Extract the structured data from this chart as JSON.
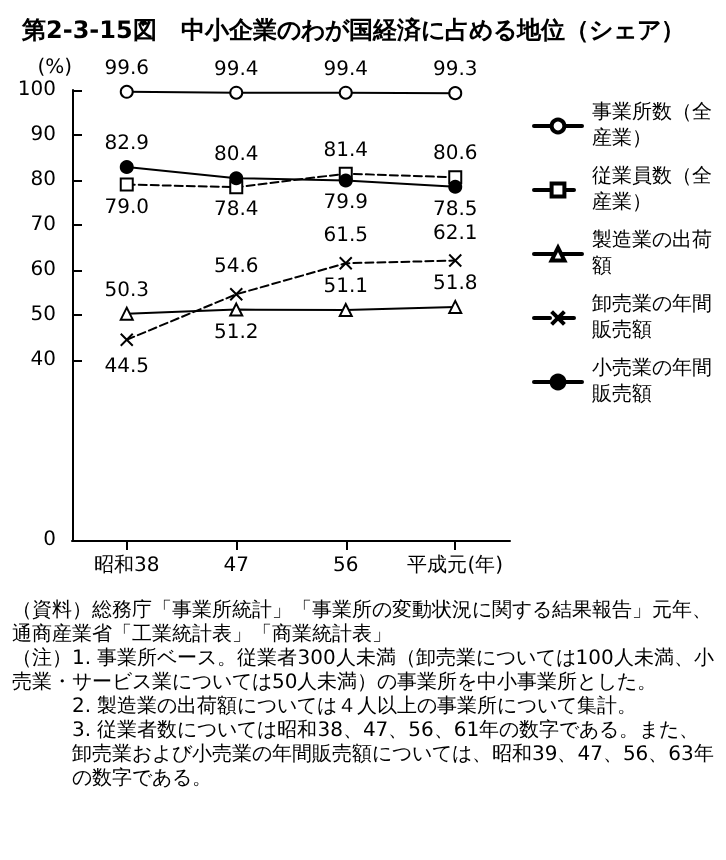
{
  "chart_data": {
    "type": "line",
    "title": "第2-3-15図　中小企業のわが国経済に占める地位（シェア）",
    "ylabel": "(%)",
    "categories": [
      "昭和38",
      "47",
      "56",
      "平成元(年)"
    ],
    "series": [
      {
        "name": "事業所数（全産業）",
        "color": "#000000",
        "values": [
          99.6,
          99.4,
          99.4,
          99.3
        ],
        "marker": "circle",
        "line_style": "solid"
      },
      {
        "name": "従業員数（全産業）",
        "color": "#000000",
        "values": [
          79.0,
          78.4,
          81.4,
          80.6
        ],
        "value_labels": [
          "79.0",
          "78.4",
          "81.4",
          "80.6"
        ],
        "marker": "square",
        "line_style": "dashed"
      },
      {
        "name": "製造業の出荷額",
        "color": "#000000",
        "values": [
          50.3,
          51.2,
          51.1,
          51.8
        ],
        "marker": "triangle",
        "line_style": "solid"
      },
      {
        "name": "卸売業の年間販売額",
        "color": "#000000",
        "values": [
          44.5,
          54.6,
          61.5,
          62.1
        ],
        "marker": "cross",
        "line_style": "dashed"
      },
      {
        "name": "小売業の年間販売額",
        "color": "#000000",
        "values": [
          82.9,
          80.4,
          79.9,
          78.5
        ],
        "marker": "filled_circle",
        "line_style": "solid"
      }
    ],
    "ylim": [
      0,
      100
    ],
    "yticks": [
      0,
      40,
      50,
      60,
      70,
      80,
      90,
      100
    ],
    "data_labels": true,
    "grid": false,
    "legend": "right",
    "annotations": [
      "（資料）総務庁「事業所統計」「事業所の変動状況に関する結果報告」元年、通商産業省「工業統計表」「商業統計表」",
      "（注）1. 事業所ベース。従業者300人未満（卸売業については100人未満、小売業・サービス業については50人未満）の事業所を中小事業所とした。",
      "2. 製造業の出荷額については４人以上の事業所について集計。",
      "3. 従業者数については昭和38、47、56、61年の数字である。また、卸売業および小売業の年間販売額については、昭和39、47、56、63年の数字である。"
    ]
  }
}
